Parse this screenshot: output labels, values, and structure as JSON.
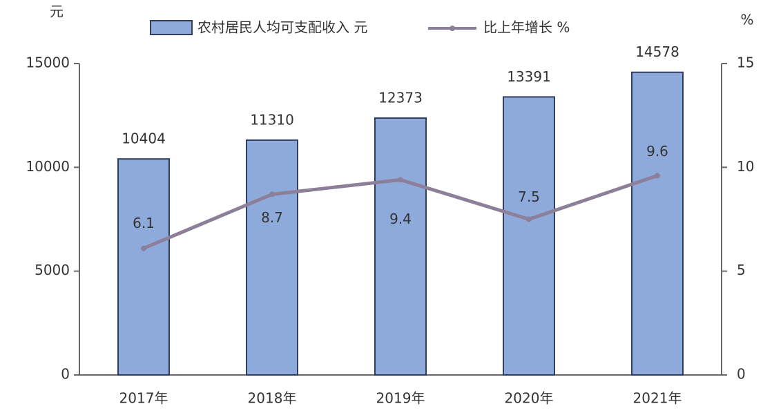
{
  "chart_data": {
    "type": "bar-line",
    "y_unit": "元",
    "y2_unit": "%",
    "categories": [
      "2017年",
      "2018年",
      "2019年",
      "2020年",
      "2021年"
    ],
    "series": [
      {
        "name": "农村居民人均可支配收入 元",
        "type": "bar",
        "color": "#8eaadb",
        "values": [
          10404,
          11310,
          12373,
          13391,
          14578
        ]
      },
      {
        "name": "比上年增长 %",
        "type": "line",
        "axis": "y2",
        "color": "#8c7f99",
        "values": [
          6.1,
          8.7,
          9.4,
          7.5,
          9.6
        ]
      }
    ],
    "ylim": [
      0,
      15000
    ],
    "yticks": [
      0,
      5000,
      10000,
      15000
    ],
    "y2lim": [
      0,
      15
    ],
    "y2ticks": [
      0,
      5,
      10,
      15
    ]
  }
}
